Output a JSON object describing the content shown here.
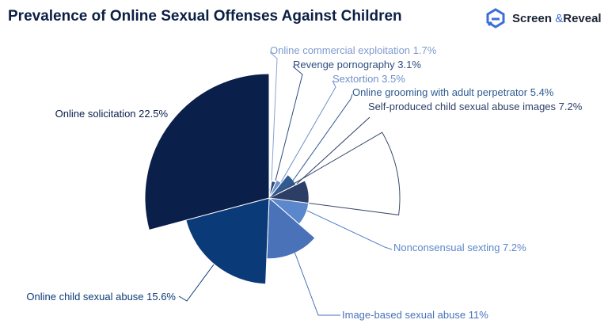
{
  "title": "Prevalence of Online Sexual Offenses Against Children",
  "brand": {
    "name_1": "Screen",
    "amp": "&",
    "name_2": "Reveal",
    "accent": "#3b6fd6"
  },
  "chart_data": {
    "type": "polar-area",
    "title": "Prevalence of Online Sexual Offenses Against Children",
    "unit": "%",
    "categories": [
      "Online commercial exploitation",
      "Revenge pornography",
      "Sextortion",
      "Online grooming with adult perpetrator",
      "Self-produced child sexual abuse images",
      "Nonconsensual sexting",
      "Image-based sexual abuse",
      "Online child sexual abuse",
      "Online solicitation"
    ],
    "values": [
      1.7,
      3.1,
      3.5,
      5.4,
      7.2,
      7.2,
      11,
      15.6,
      22.5
    ],
    "labels": [
      "Online commercial exploitation 1.7%",
      "Revenge pornography 3.1%",
      "Sextortion 3.5%",
      "Online grooming with adult perpetrator 5.4%",
      "Self-produced child sexual abuse images 7.2%",
      "Nonconsensual sexting 7.2%",
      "Image-based sexual abuse 11%",
      "Online child sexual abuse 15.6%",
      "Online solicitation 22.5%"
    ],
    "colors": [
      "#8aa4d4",
      "#2f4d80",
      "#6f8fc8",
      "#2f5a92",
      "#2c3e66",
      "#5b87cc",
      "#4a72b8",
      "#0b3a78",
      "#0a1f4a"
    ],
    "highlighted": "Self-produced child sexual abuse images"
  }
}
